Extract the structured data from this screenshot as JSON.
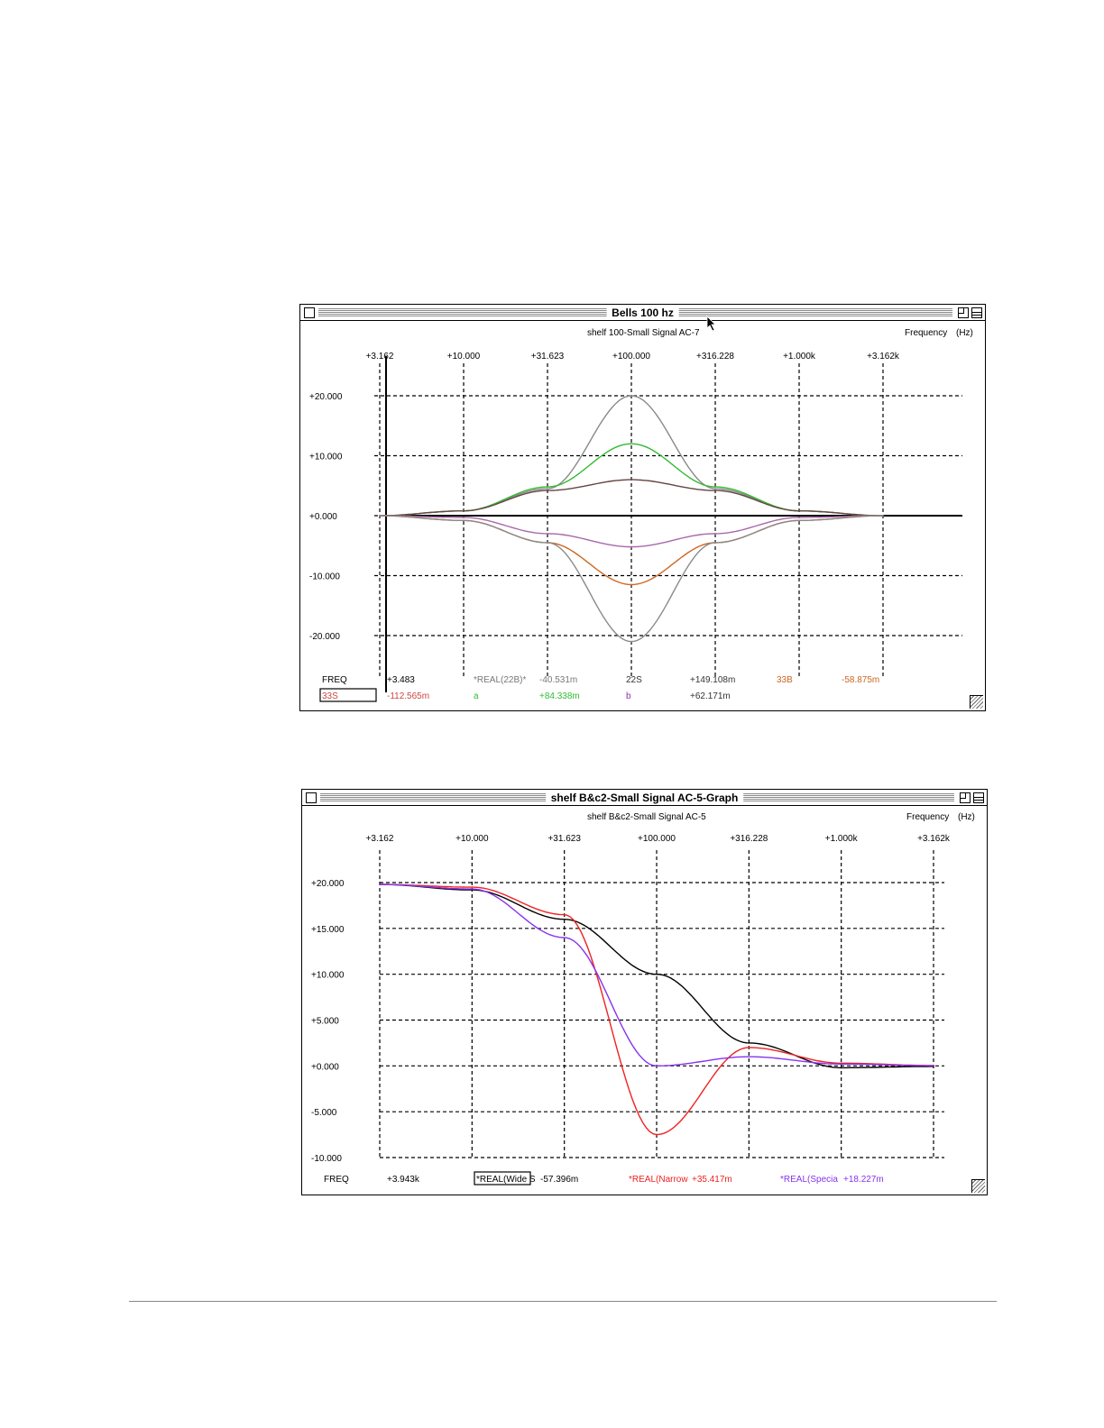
{
  "window1": {
    "title": "Bells 100 hz",
    "subtitle": "shelf 100-Small Signal AC-7",
    "axis_label": "Frequency",
    "axis_unit": "(Hz)",
    "x_ticks": [
      "+3.162",
      "+10.000",
      "+31.623",
      "+100.000",
      "+316.228",
      "+1.000k",
      "+3.162k"
    ],
    "y_ticks": [
      "+20.000",
      "+10.000",
      "+0.000",
      "-10.000",
      "-20.000"
    ],
    "readout_row1": [
      {
        "text": "FREQ",
        "color": "#000000"
      },
      {
        "text": "+3.483",
        "color": "#000000"
      },
      {
        "text": "*REAL(22B)*",
        "color": "#777777"
      },
      {
        "text": "-40.531m",
        "color": "#777777"
      },
      {
        "text": "22S",
        "color": "#333333"
      },
      {
        "text": "+149.108m",
        "color": "#333333"
      },
      {
        "text": "33B",
        "color": "#cc6622"
      },
      {
        "text": "-58.875m",
        "color": "#cc6622"
      }
    ],
    "readout_row2": [
      {
        "text": "33S",
        "color": "#cc4444",
        "boxed": true
      },
      {
        "text": "-112.565m",
        "color": "#cc4444"
      },
      {
        "text": "a",
        "color": "#33bb33"
      },
      {
        "text": "+84.338m",
        "color": "#33bb33"
      },
      {
        "text": "b",
        "color": "#8833aa"
      },
      {
        "text": "+62.171m",
        "color": "#333333"
      }
    ]
  },
  "window2": {
    "title": "shelf B&c2-Small Signal AC-5-Graph",
    "subtitle": "shelf B&c2-Small Signal AC-5",
    "axis_label": "Frequency",
    "axis_unit": "(Hz)",
    "x_ticks": [
      "+3.162",
      "+10.000",
      "+31.623",
      "+100.000",
      "+316.228",
      "+1.000k",
      "+3.162k"
    ],
    "y_ticks": [
      "+20.000",
      "+15.000",
      "+10.000",
      "+5.000",
      "+0.000",
      "-5.000",
      "-10.000"
    ],
    "readout_row1": [
      {
        "text": "FREQ",
        "color": "#000000"
      },
      {
        "text": "+3.943k",
        "color": "#000000"
      },
      {
        "text": "*REAL(Wide S",
        "color": "#000000",
        "boxed": true
      },
      {
        "text": "-57.396m",
        "color": "#000000"
      },
      {
        "text": "*REAL(Narrow",
        "color": "#ee2222"
      },
      {
        "text": "+35.417m",
        "color": "#ee2222"
      },
      {
        "text": "*REAL(Specia",
        "color": "#8833ee"
      },
      {
        "text": "+18.227m",
        "color": "#8833ee"
      }
    ]
  },
  "chart_data": [
    {
      "type": "line",
      "title": "Bells 100 hz",
      "xlabel": "Frequency (Hz)",
      "x_scale": "log",
      "xlim": [
        3.162,
        3162
      ],
      "ylim": [
        -20,
        20
      ],
      "grid": true,
      "x": [
        3.162,
        10,
        31.623,
        100,
        316.228,
        1000,
        3162
      ],
      "series": [
        {
          "name": "22B",
          "color": "#8a8a8a",
          "values": [
            0,
            0.8,
            4.5,
            20,
            4.5,
            0.8,
            0
          ]
        },
        {
          "name": "a",
          "color": "#33bb33",
          "values": [
            0,
            0.8,
            4.8,
            12,
            4.8,
            0.8,
            0
          ]
        },
        {
          "name": "22S",
          "color": "#664444",
          "values": [
            0,
            0.8,
            4.2,
            6,
            4.2,
            0.8,
            0
          ]
        },
        {
          "name": "b",
          "color": "#aa66aa",
          "values": [
            0,
            -0.3,
            -3,
            -5.2,
            -3,
            -0.3,
            0
          ]
        },
        {
          "name": "33B",
          "color": "#cc6622",
          "values": [
            0,
            -0.8,
            -4.5,
            -11.5,
            -4.5,
            -0.8,
            0
          ]
        },
        {
          "name": "33S",
          "color": "#8a8a8a",
          "values": [
            0,
            -0.8,
            -4.5,
            -21,
            -4.5,
            -0.8,
            0
          ]
        }
      ]
    },
    {
      "type": "line",
      "title": "shelf B&c2-Small Signal AC-5-Graph",
      "xlabel": "Frequency (Hz)",
      "x_scale": "log",
      "xlim": [
        3.162,
        3162
      ],
      "ylim": [
        -10,
        20
      ],
      "grid": true,
      "x": [
        3.162,
        10,
        31.623,
        100,
        316.228,
        1000,
        3162
      ],
      "series": [
        {
          "name": "REAL(Wide S",
          "color": "#000000",
          "values": [
            19.8,
            19.2,
            16,
            10,
            2.5,
            -0.2,
            -0.06
          ]
        },
        {
          "name": "REAL(Narrow",
          "color": "#ee2222",
          "values": [
            19.8,
            19.5,
            16.5,
            -7.5,
            2,
            0.3,
            0.04
          ]
        },
        {
          "name": "REAL(Specia",
          "color": "#8833ee",
          "values": [
            19.8,
            19.3,
            14,
            0,
            1,
            0.2,
            0.02
          ]
        }
      ]
    }
  ]
}
